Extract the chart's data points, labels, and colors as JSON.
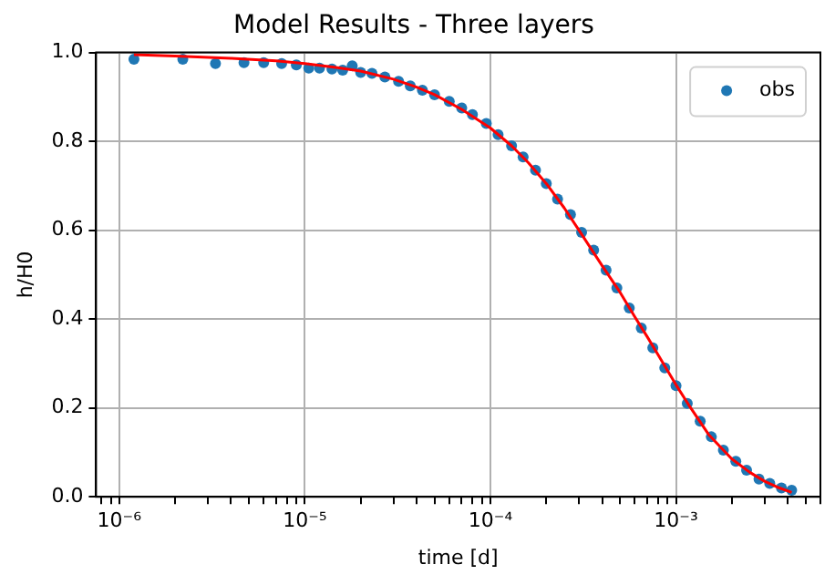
{
  "chart_data": {
    "type": "scatter",
    "title": "Model Results - Three layers",
    "xlabel": "time [d]",
    "ylabel": "h/H0",
    "log": "x",
    "grid": true,
    "legend": "top right",
    "xlim": [
      7.5e-07,
      0.006
    ],
    "ylim": [
      0,
      1
    ],
    "xticks": [
      {
        "value": 8e-07,
        "label": null
      },
      {
        "value": 9e-07,
        "label": null
      },
      {
        "value": 1e-06,
        "label": "10⁻⁶"
      },
      {
        "value": 2e-06,
        "label": null
      },
      {
        "value": 3e-06,
        "label": null
      },
      {
        "value": 4e-06,
        "label": null
      },
      {
        "value": 5e-06,
        "label": null
      },
      {
        "value": 6e-06,
        "label": null
      },
      {
        "value": 7e-06,
        "label": null
      },
      {
        "value": 8e-06,
        "label": null
      },
      {
        "value": 9e-06,
        "label": null
      },
      {
        "value": 1e-05,
        "label": "10⁻⁵"
      },
      {
        "value": 2e-05,
        "label": null
      },
      {
        "value": 3e-05,
        "label": null
      },
      {
        "value": 4e-05,
        "label": null
      },
      {
        "value": 5e-05,
        "label": null
      },
      {
        "value": 6e-05,
        "label": null
      },
      {
        "value": 7e-05,
        "label": null
      },
      {
        "value": 8e-05,
        "label": null
      },
      {
        "value": 9e-05,
        "label": null
      },
      {
        "value": 0.0001,
        "label": "10⁻⁴"
      },
      {
        "value": 0.0002,
        "label": null
      },
      {
        "value": 0.0003,
        "label": null
      },
      {
        "value": 0.0004,
        "label": null
      },
      {
        "value": 0.0005,
        "label": null
      },
      {
        "value": 0.0006,
        "label": null
      },
      {
        "value": 0.0007,
        "label": null
      },
      {
        "value": 0.0008,
        "label": null
      },
      {
        "value": 0.0009,
        "label": null
      },
      {
        "value": 0.001,
        "label": "10⁻³"
      },
      {
        "value": 0.002,
        "label": null
      },
      {
        "value": 0.003,
        "label": null
      },
      {
        "value": 0.004,
        "label": null
      },
      {
        "value": 0.005,
        "label": null
      },
      {
        "value": 0.006,
        "label": null
      }
    ],
    "yticks": [
      {
        "value": 0,
        "label": "0.0"
      },
      {
        "value": 0.2,
        "label": "0.2"
      },
      {
        "value": 0.4,
        "label": "0.4"
      },
      {
        "value": 0.6,
        "label": "0.6"
      },
      {
        "value": 0.8,
        "label": "0.8"
      },
      {
        "value": 1,
        "label": "1.0"
      }
    ],
    "series": [
      {
        "name": "obs",
        "type": "scatter",
        "marker": "circle",
        "color": "#1f77b4",
        "x": [
          1.2e-06,
          2.2e-06,
          3.3e-06,
          4.7e-06,
          6e-06,
          7.5e-06,
          9e-06,
          1.05e-05,
          1.2e-05,
          1.4e-05,
          1.6e-05,
          1.8e-05,
          2e-05,
          2.3e-05,
          2.7e-05,
          3.2e-05,
          3.7e-05,
          4.3e-05,
          5e-05,
          6e-05,
          7e-05,
          8e-05,
          9.5e-05,
          0.00011,
          0.00013,
          0.00015,
          0.000175,
          0.0002,
          0.00023,
          0.00027,
          0.00031,
          0.00036,
          0.00042,
          0.00048,
          0.00056,
          0.00065,
          0.00075,
          0.00087,
          0.001,
          0.00115,
          0.00135,
          0.00155,
          0.0018,
          0.0021,
          0.0024,
          0.0028,
          0.0032,
          0.0037,
          0.0042
        ],
        "values": [
          0.985,
          0.985,
          0.975,
          0.977,
          0.977,
          0.975,
          0.972,
          0.965,
          0.965,
          0.963,
          0.96,
          0.97,
          0.955,
          0.953,
          0.945,
          0.935,
          0.925,
          0.915,
          0.905,
          0.89,
          0.875,
          0.86,
          0.84,
          0.815,
          0.79,
          0.765,
          0.735,
          0.705,
          0.67,
          0.635,
          0.595,
          0.555,
          0.51,
          0.47,
          0.425,
          0.38,
          0.335,
          0.29,
          0.25,
          0.21,
          0.17,
          0.135,
          0.105,
          0.08,
          0.06,
          0.04,
          0.03,
          0.02,
          0.015
        ]
      },
      {
        "type": "line",
        "marker": "none",
        "line_style": "solid",
        "color": "#ff0000",
        "x": [
          1.2e-06,
          2e-06,
          4e-06,
          7e-06,
          1e-05,
          1.5e-05,
          2e-05,
          3e-05,
          4e-05,
          5e-05,
          7e-05,
          0.0001,
          0.00013,
          0.00016,
          0.0002,
          0.00025,
          0.0003,
          0.0004,
          0.0005,
          0.0006,
          0.0007,
          0.0008,
          0.001,
          0.0012,
          0.0015,
          0.002,
          0.0025,
          0.003,
          0.0035,
          0.0042
        ],
        "values": [
          0.995,
          0.992,
          0.987,
          0.981,
          0.975,
          0.966,
          0.958,
          0.94,
          0.922,
          0.905,
          0.872,
          0.83,
          0.79,
          0.752,
          0.705,
          0.65,
          0.6,
          0.52,
          0.46,
          0.405,
          0.36,
          0.32,
          0.252,
          0.2,
          0.14,
          0.085,
          0.055,
          0.035,
          0.022,
          0.01
        ]
      }
    ]
  }
}
